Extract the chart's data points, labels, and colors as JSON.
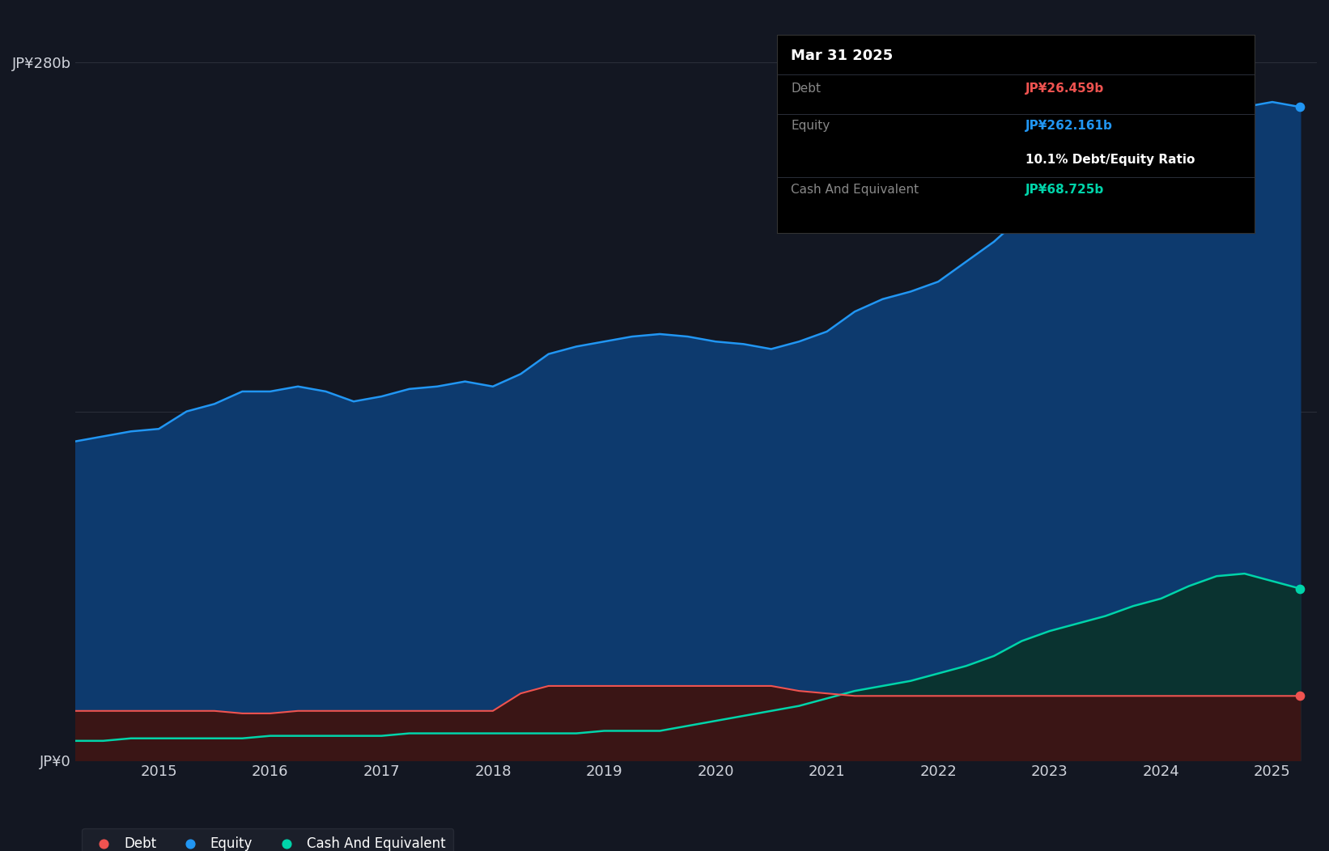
{
  "bg_color": "#131722",
  "plot_bg_color": "#131722",
  "grid_color": "#2a2e39",
  "equity_color": "#2196f3",
  "equity_fill": "#0d3a6e",
  "debt_color": "#ef5350",
  "debt_fill": "#3a1515",
  "cash_color": "#00d4aa",
  "cash_fill": "#0a3330",
  "ylabel_color": "#d1d4dc",
  "xlabel_color": "#d1d4dc",
  "tooltip_bg": "#000000",
  "tooltip_border": "#333333",
  "ylim": [
    0,
    300
  ],
  "years_x": [
    2014.25,
    2014.5,
    2014.75,
    2015.0,
    2015.25,
    2015.5,
    2015.75,
    2016.0,
    2016.25,
    2016.5,
    2016.75,
    2017.0,
    2017.25,
    2017.5,
    2017.75,
    2018.0,
    2018.25,
    2018.5,
    2018.75,
    2019.0,
    2019.25,
    2019.5,
    2019.75,
    2020.0,
    2020.25,
    2020.5,
    2020.75,
    2021.0,
    2021.25,
    2021.5,
    2021.75,
    2022.0,
    2022.25,
    2022.5,
    2022.75,
    2023.0,
    2023.25,
    2023.5,
    2023.75,
    2024.0,
    2024.25,
    2024.5,
    2024.75,
    2025.0,
    2025.25
  ],
  "equity": [
    128,
    130,
    132,
    133,
    140,
    143,
    148,
    148,
    150,
    148,
    144,
    146,
    149,
    150,
    152,
    150,
    155,
    163,
    166,
    168,
    170,
    171,
    170,
    168,
    167,
    165,
    168,
    172,
    180,
    185,
    188,
    192,
    200,
    208,
    218,
    222,
    230,
    238,
    245,
    248,
    252,
    268,
    262,
    264,
    262
  ],
  "debt": [
    20,
    20,
    20,
    20,
    20,
    20,
    19,
    19,
    20,
    20,
    20,
    20,
    20,
    20,
    20,
    20,
    27,
    30,
    30,
    30,
    30,
    30,
    30,
    30,
    30,
    30,
    28,
    27,
    26,
    26,
    26,
    26,
    26,
    26,
    26,
    26,
    26,
    26,
    26,
    26,
    26,
    26,
    26,
    26,
    26
  ],
  "cash": [
    8,
    8,
    9,
    9,
    9,
    9,
    9,
    10,
    10,
    10,
    10,
    10,
    11,
    11,
    11,
    11,
    11,
    11,
    11,
    12,
    12,
    12,
    14,
    16,
    18,
    20,
    22,
    25,
    28,
    30,
    32,
    35,
    38,
    42,
    48,
    52,
    55,
    58,
    62,
    65,
    70,
    74,
    75,
    72,
    69
  ],
  "tooltip_date": "Mar 31 2025",
  "tooltip_debt_label": "Debt",
  "tooltip_debt_value": "JP¥26.459b",
  "tooltip_equity_label": "Equity",
  "tooltip_equity_value": "JP¥262.161b",
  "tooltip_ratio": "10.1% Debt/Equity Ratio",
  "tooltip_cash_label": "Cash And Equivalent",
  "tooltip_cash_value": "JP¥68.725b",
  "legend_debt": "Debt",
  "legend_equity": "Equity",
  "legend_cash": "Cash And Equivalent",
  "xlim": [
    2014.25,
    2025.4
  ],
  "xtick_positions": [
    2015,
    2016,
    2017,
    2018,
    2019,
    2020,
    2021,
    2022,
    2023,
    2024,
    2025
  ],
  "ytick_positions": [
    0,
    140,
    280
  ],
  "ytick_labels": [
    "JP¥0",
    "",
    "JP¥280b"
  ]
}
